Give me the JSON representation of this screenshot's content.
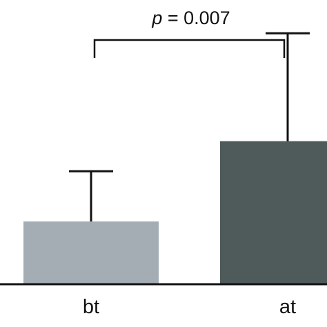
{
  "chart_data": {
    "type": "bar",
    "categories": [
      "bt",
      "at"
    ],
    "values": [
      0.25,
      0.57
    ],
    "error_upper": [
      0.45,
      1.0
    ],
    "colors": [
      "#a4adb3",
      "#4f5a5b"
    ],
    "ylim": [
      0,
      1.05
    ],
    "annotation": {
      "prefix": "p",
      "text": " = 0.007"
    },
    "grid": false
  }
}
